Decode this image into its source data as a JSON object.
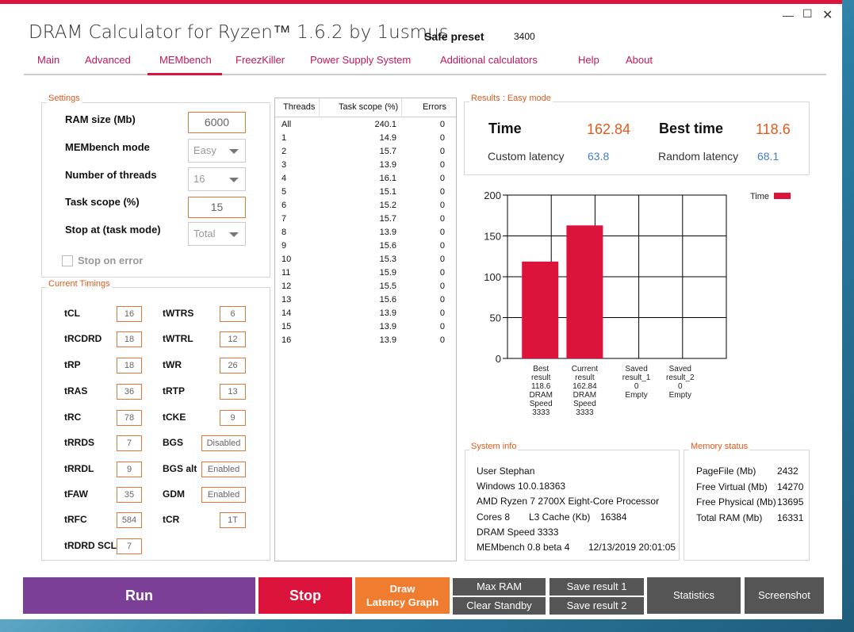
{
  "app": {
    "title": "DRAM Calculator for Ryzen™ 1.6.2 by 1usmus",
    "preset_label": "Safe preset",
    "preset_value": "3400"
  },
  "nav": {
    "tabs": [
      "Main",
      "Advanced",
      "MEMbench",
      "FreezKiller",
      "Power Supply System",
      "Additional calculators",
      "Help",
      "About"
    ],
    "active": "MEMbench"
  },
  "settings": {
    "title": "Settings",
    "ram_size_label": "RAM size (Mb)",
    "ram_size_value": "6000",
    "mode_label": "MEMbench mode",
    "mode_value": "Easy",
    "threads_label": "Number of threads",
    "threads_value": "16",
    "task_scope_label": "Task scope (%)",
    "task_scope_value": "15",
    "stop_at_label": "Stop at (task mode)",
    "stop_at_value": "Total",
    "stop_on_error_label": "Stop on error"
  },
  "timings": {
    "title": "Current Timings",
    "left": [
      [
        "tCL",
        "16"
      ],
      [
        "tRCDRD",
        "18"
      ],
      [
        "tRP",
        "18"
      ],
      [
        "tRAS",
        "36"
      ],
      [
        "tRC",
        "78"
      ],
      [
        "tRRDS",
        "7"
      ],
      [
        "tRRDL",
        "9"
      ],
      [
        "tFAW",
        "35"
      ],
      [
        "tRFC",
        "584"
      ],
      [
        "tRDRD SCL",
        "7"
      ]
    ],
    "right": [
      [
        "tWTRS",
        "6"
      ],
      [
        "tWTRL",
        "12"
      ],
      [
        "tWR",
        "26"
      ],
      [
        "tRTP",
        "13"
      ],
      [
        "tCKE",
        "9"
      ],
      [
        "BGS",
        "Disabled"
      ],
      [
        "BGS alt",
        "Enabled"
      ],
      [
        "GDM",
        "Enabled"
      ],
      [
        "tCR",
        "1T"
      ]
    ]
  },
  "threads_table": {
    "headers": [
      "Threads",
      "Task scope (%)",
      "Errors"
    ],
    "rows": [
      [
        "All",
        "240.1",
        "0"
      ],
      [
        "1",
        "14.9",
        "0"
      ],
      [
        "2",
        "15.7",
        "0"
      ],
      [
        "3",
        "13.9",
        "0"
      ],
      [
        "4",
        "16.1",
        "0"
      ],
      [
        "5",
        "15.1",
        "0"
      ],
      [
        "6",
        "15.2",
        "0"
      ],
      [
        "7",
        "15.7",
        "0"
      ],
      [
        "8",
        "13.9",
        "0"
      ],
      [
        "9",
        "15.6",
        "0"
      ],
      [
        "10",
        "15.3",
        "0"
      ],
      [
        "11",
        "15.9",
        "0"
      ],
      [
        "12",
        "15.5",
        "0"
      ],
      [
        "13",
        "15.6",
        "0"
      ],
      [
        "14",
        "13.9",
        "0"
      ],
      [
        "15",
        "13.9",
        "0"
      ],
      [
        "16",
        "13.9",
        "0"
      ]
    ]
  },
  "results": {
    "title": "Results : Easy mode",
    "time_label": "Time",
    "time_value": "162.84",
    "best_label": "Best time",
    "best_value": "118.6",
    "custom_label": "Custom latency",
    "custom_value": "63.8",
    "random_label": "Random latency",
    "random_value": "68.1"
  },
  "chart_data": {
    "type": "bar",
    "legend": "Time",
    "legend_position": "top-right",
    "ylim": [
      0,
      200
    ],
    "yticks": [
      "200",
      "150",
      "100",
      "50",
      "0"
    ],
    "categories": [
      [
        "Best",
        "result",
        "118.6",
        "DRAM",
        "Speed",
        "3333"
      ],
      [
        "Current",
        "result",
        "162.84",
        "DRAM",
        "Speed",
        "3333"
      ],
      [
        "Saved",
        "result_1",
        "0",
        "Empty"
      ],
      [
        "Saved",
        "result_2",
        "0",
        "Empty"
      ]
    ],
    "values": [
      118.6,
      162.84,
      0,
      0
    ],
    "color": "#dc143c",
    "grid": true
  },
  "system": {
    "title": "System info",
    "user": "User Stephan",
    "os": "Windows 10.0.18363",
    "cpu": "AMD Ryzen 7 2700X Eight-Core Processor",
    "cores": "Cores 8",
    "l3_label": "L3 Cache (Kb)",
    "l3_value": "16384",
    "dram": "DRAM Speed 3333",
    "membench": "MEMbench 0.8 beta 4",
    "date": "12/13/2019 20:01:05"
  },
  "memory": {
    "title": "Memory status",
    "rows": [
      [
        "PageFile (Mb)",
        "2432"
      ],
      [
        "Free Virtual (Mb)",
        "14270"
      ],
      [
        "Free Physical (Mb)",
        "13695"
      ],
      [
        "Total RAM (Mb)",
        "16331"
      ]
    ]
  },
  "buttons": {
    "run": "Run",
    "stop": "Stop",
    "draw1": "Draw",
    "draw2": "Latency Graph",
    "max_ram": "Max RAM",
    "clear_standby": "Clear Standby",
    "save1": "Save result 1",
    "save2": "Save result 2",
    "statistics": "Statistics",
    "screenshot": "Screenshot"
  },
  "colors": {
    "accent": "#dc143c",
    "run": "#7b3f98",
    "orange": "#f07c30",
    "dark": "#555555",
    "value_orange": "#e25a1c",
    "value_blue": "#4a7fc0"
  }
}
